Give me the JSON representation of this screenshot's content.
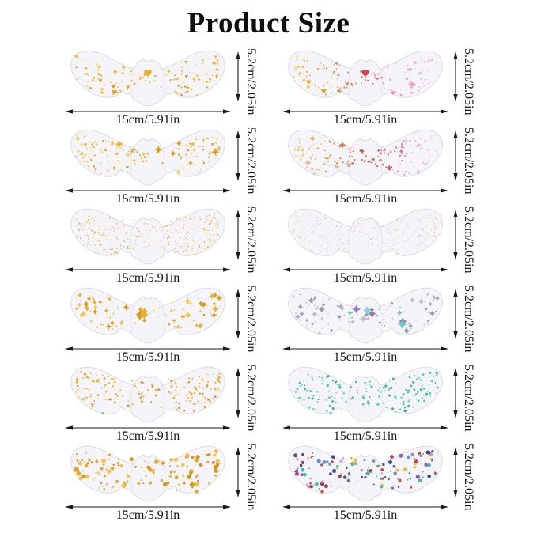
{
  "title": "Product Size",
  "dimensions": {
    "width": "15cm/5.91in",
    "height": "5.2cm/2.05in"
  },
  "wing_style": {
    "fill": "#F5F5F9",
    "stroke": "#DCDCE3"
  },
  "arrow_color": "#1a1a1a",
  "items": [
    {
      "id": "gold-hearts",
      "pattern": "hearts",
      "palette": [
        "#F2B32A",
        "#E09A12",
        "#F7CE57"
      ],
      "center_accent": "#F0AE1E"
    },
    {
      "id": "gradient-hearts",
      "pattern": "hearts",
      "gradient": [
        "#EFC23C",
        "#E59A30",
        "#D9636A",
        "#E890BC",
        "#F3C6DC"
      ],
      "center_accent": "#D9414E"
    },
    {
      "id": "gold-dots-stars",
      "pattern": "dotstars",
      "palette": [
        "#EDB335",
        "#DE9A1B",
        "#F3CC66"
      ]
    },
    {
      "id": "gradient-dots-stars",
      "pattern": "dotstars",
      "gradient": [
        "#F0DFA8",
        "#D89A48",
        "#C05A40",
        "#CC5570",
        "#E8B8C8"
      ],
      "fade_right": true
    },
    {
      "id": "gold-speckle",
      "pattern": "speckle",
      "palette": [
        "#E3B44A",
        "#D49A2E",
        "#EECB7A"
      ]
    },
    {
      "id": "rose-speckle",
      "pattern": "speckle",
      "palette": [
        "#D9A8A0",
        "#CE9890",
        "#E4C0BA"
      ],
      "faint": true
    },
    {
      "id": "gold-sparkles",
      "pattern": "sparkles",
      "palette": [
        "#E8AC28",
        "#D89718",
        "#F2C654"
      ]
    },
    {
      "id": "silver-sparkles",
      "pattern": "sparkles",
      "palette": [
        "#99A2B8",
        "#8A94AC",
        "#B4BCCC"
      ],
      "accents": [
        "#58CCC2",
        "#7ED8D0",
        "#8F7CC0"
      ]
    },
    {
      "id": "gold-dots",
      "pattern": "dots",
      "palette": [
        "#E2A829",
        "#D3921A",
        "#EDC050"
      ]
    },
    {
      "id": "teal-dots",
      "pattern": "dots",
      "palette": [
        "#41C2B0",
        "#2BA795",
        "#79D5C8"
      ]
    },
    {
      "id": "gold-dots-large",
      "pattern": "dotslarge",
      "palette": [
        "#E2A322",
        "#D08E14",
        "#EFBE4A"
      ]
    },
    {
      "id": "multicolor-dots",
      "pattern": "dotsmulti",
      "palette": [
        "#2E3F96",
        "#5B8BD4",
        "#C23B38",
        "#9A2D50",
        "#7B54AC",
        "#2FB8A6",
        "#E2BC35",
        "#DC8FB6",
        "#46486A"
      ]
    }
  ]
}
